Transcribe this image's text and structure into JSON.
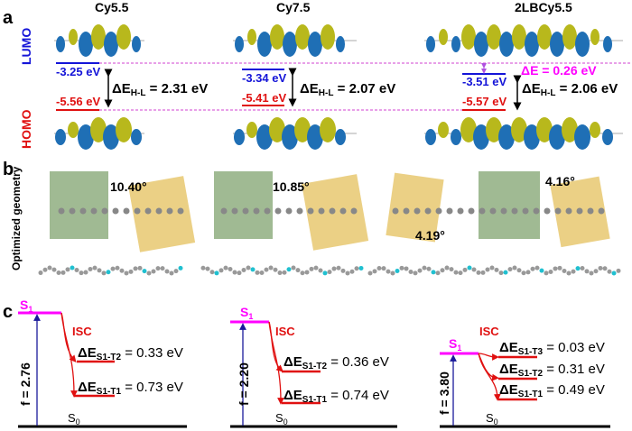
{
  "panels": {
    "a": "a",
    "b": "b",
    "c": "c"
  },
  "molecules": [
    "Cy5.5",
    "Cy7.5",
    "2LBCy5.5"
  ],
  "axis_labels": {
    "lumo": "LUMO",
    "homo": "HOMO",
    "geometry": "Optimized geometry"
  },
  "orbitals": [
    {
      "lumo": "-3.25 eV",
      "homo": "-5.56 eV",
      "gap_prefix": "ΔE",
      "gap_sub": "H-L",
      "gap_value": " = 2.31 eV"
    },
    {
      "lumo": "-3.34 eV",
      "homo": "-5.41 eV",
      "gap_prefix": "ΔE",
      "gap_sub": "H-L",
      "gap_value": " = 2.07 eV"
    },
    {
      "lumo": "-3.51 eV",
      "homo": "-5.57 eV",
      "gap_prefix": "ΔE",
      "gap_sub": "H-L",
      "gap_value": " = 2.06 eV"
    }
  ],
  "delta_e": "ΔE = 0.26 eV",
  "angles": [
    "10.40°",
    "10.85°",
    "4.16°",
    "4.19°"
  ],
  "states": {
    "s1": "S",
    "s1_sub": "1",
    "s0": "S",
    "s0_sub": "0",
    "isc": "ISC",
    "cy55": {
      "f": "f = 2.76",
      "t2": {
        "sub": "S1-T2",
        "val": " = 0.33 eV"
      },
      "t1": {
        "sub": "S1-T1",
        "val": " = 0.73 eV"
      }
    },
    "cy75": {
      "f": "f = 2.20",
      "t2": {
        "sub": "S1-T2",
        "val": " = 0.36 eV"
      },
      "t1": {
        "sub": "S1-T1",
        "val": " = 0.74 eV"
      }
    },
    "lb": {
      "f": "f = 3.80",
      "t3": {
        "sub": "S1-T3",
        "val": " = 0.03 eV"
      },
      "t2": {
        "sub": "S1-T2",
        "val": " = 0.31 eV"
      },
      "t1": {
        "sub": "S1-T1",
        "val": " = 0.49 eV"
      }
    },
    "de": "ΔE"
  },
  "colors": {
    "lumo": "#1414d8",
    "homo": "#e01010",
    "s1": "#ff00ff",
    "orbital_blue": "#1f6fb5",
    "orbital_yellow": "#b8b81c",
    "green_plane": "#8fae80",
    "yellow_plane": "#e8c870"
  }
}
